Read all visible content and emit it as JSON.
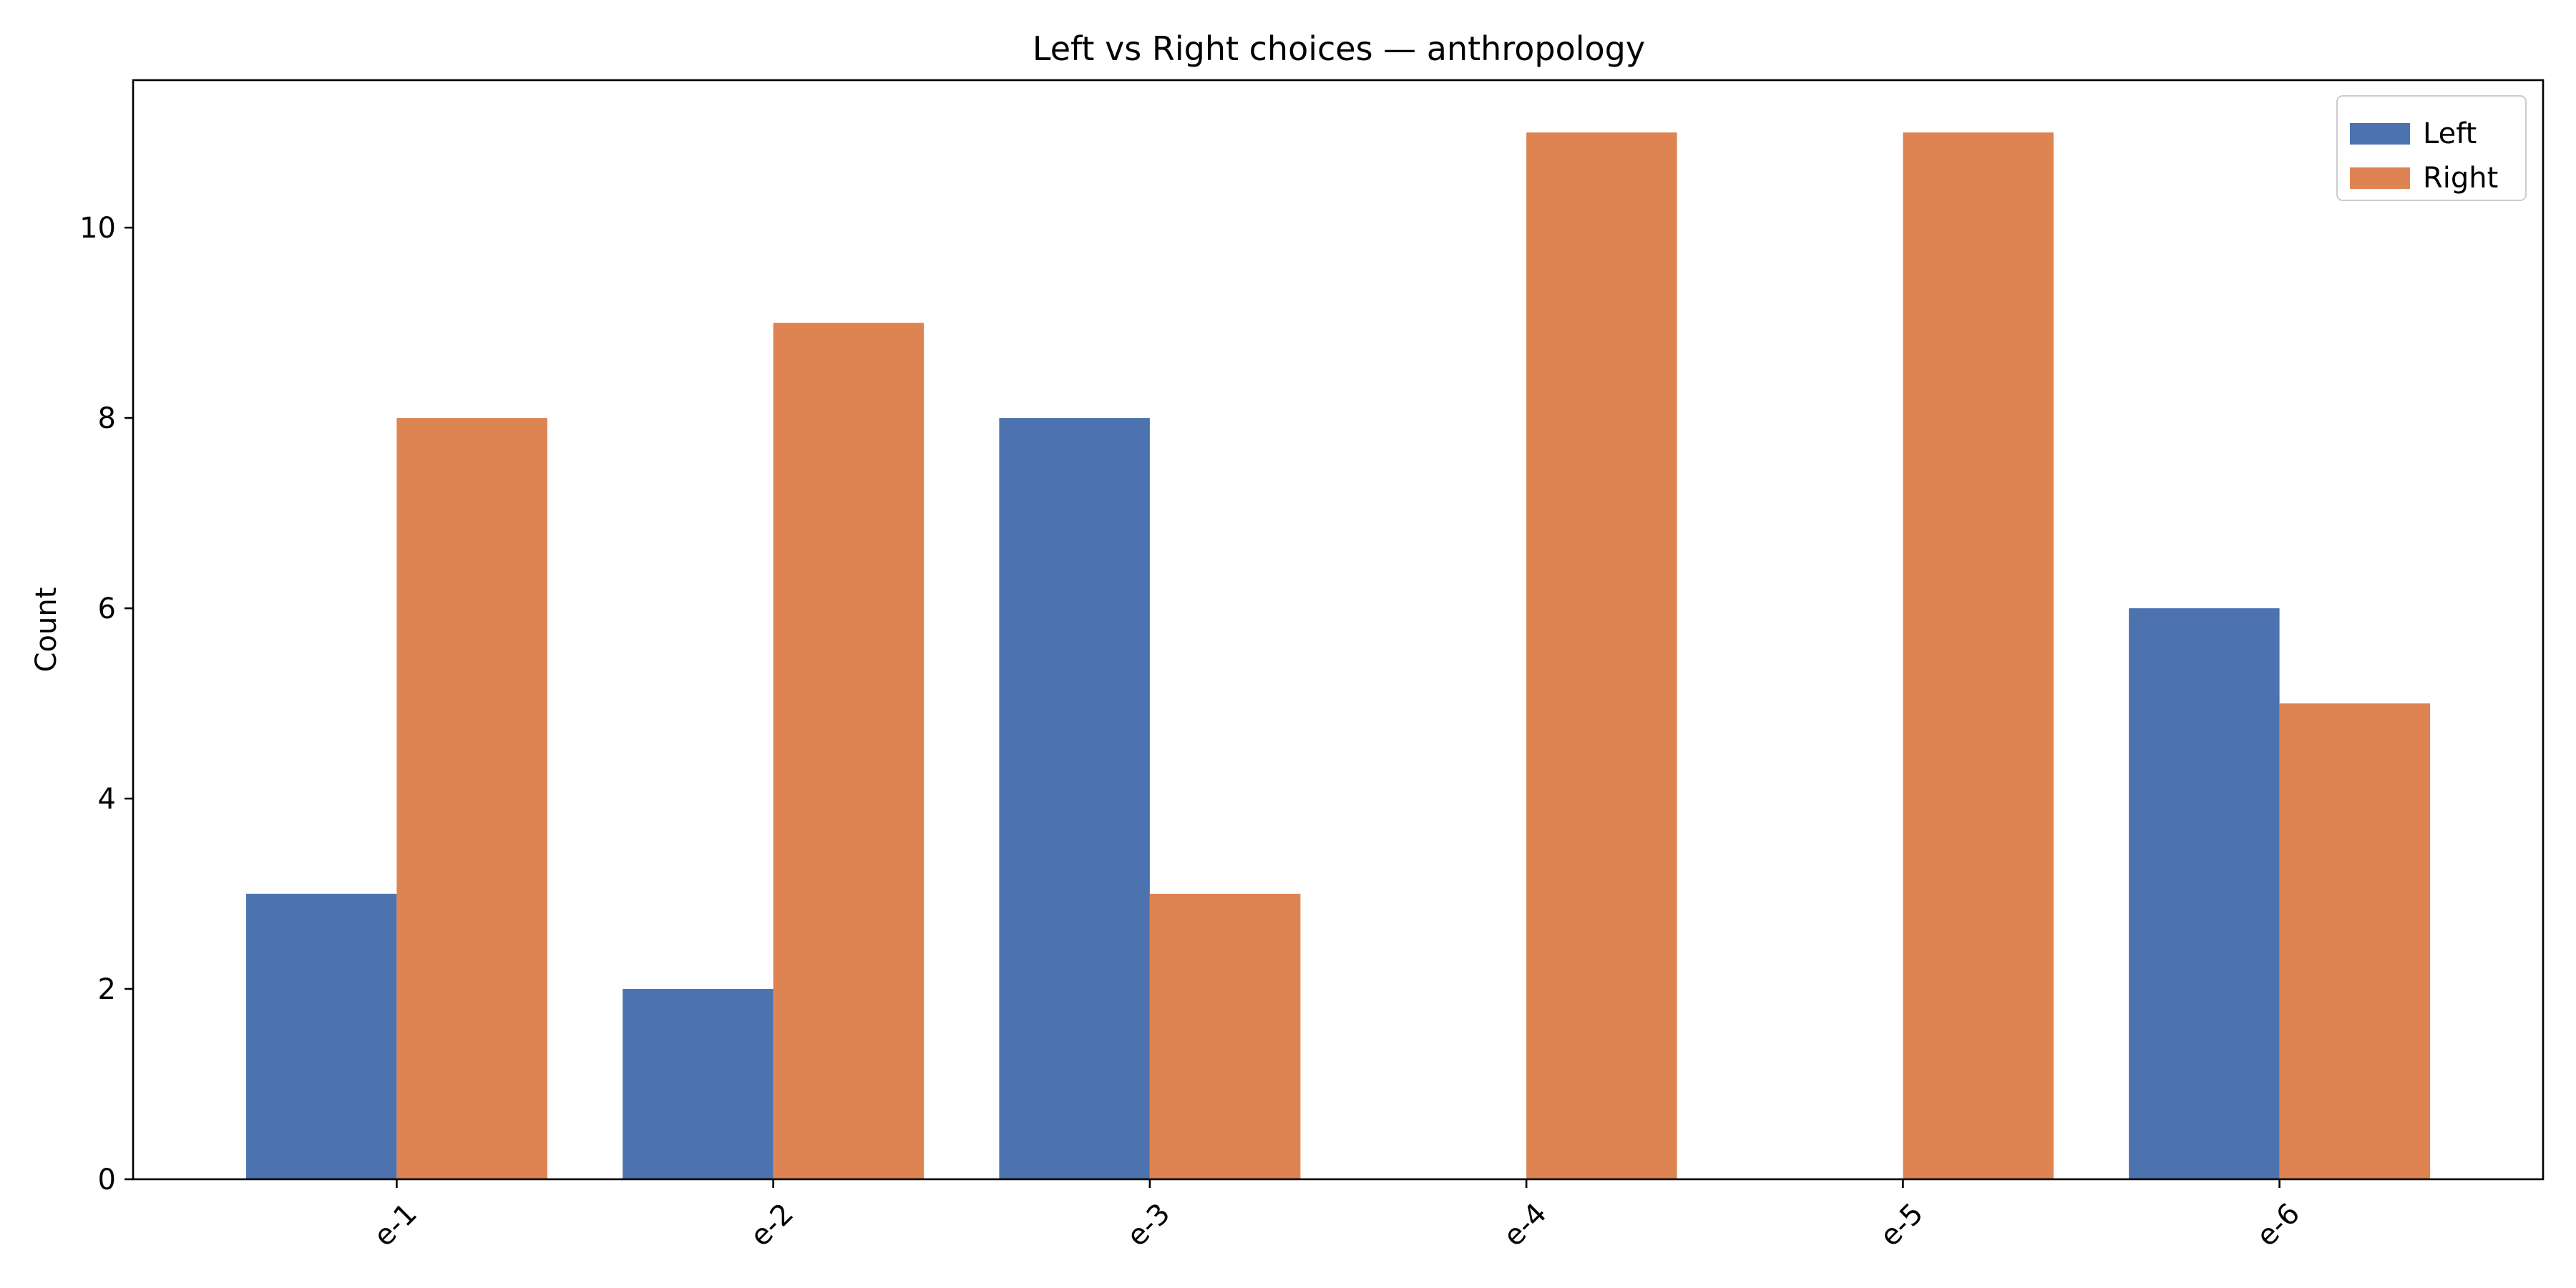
{
  "chart_data": {
    "type": "bar",
    "title": "Left vs Right choices — anthropology",
    "xlabel": "",
    "ylabel": "Count",
    "categories": [
      "e-1",
      "e-2",
      "e-3",
      "e-4",
      "e-5",
      "e-6"
    ],
    "series": [
      {
        "name": "Left",
        "values": [
          3,
          2,
          8,
          0,
          0,
          6
        ],
        "color": "#4c72b0"
      },
      {
        "name": "Right",
        "values": [
          8,
          9,
          3,
          11,
          11,
          5
        ],
        "color": "#dd8452"
      }
    ],
    "ylim": [
      0,
      11.55
    ],
    "yticks": [
      0,
      2,
      4,
      6,
      8,
      10
    ],
    "grid": false,
    "legend_position": "top-right"
  }
}
